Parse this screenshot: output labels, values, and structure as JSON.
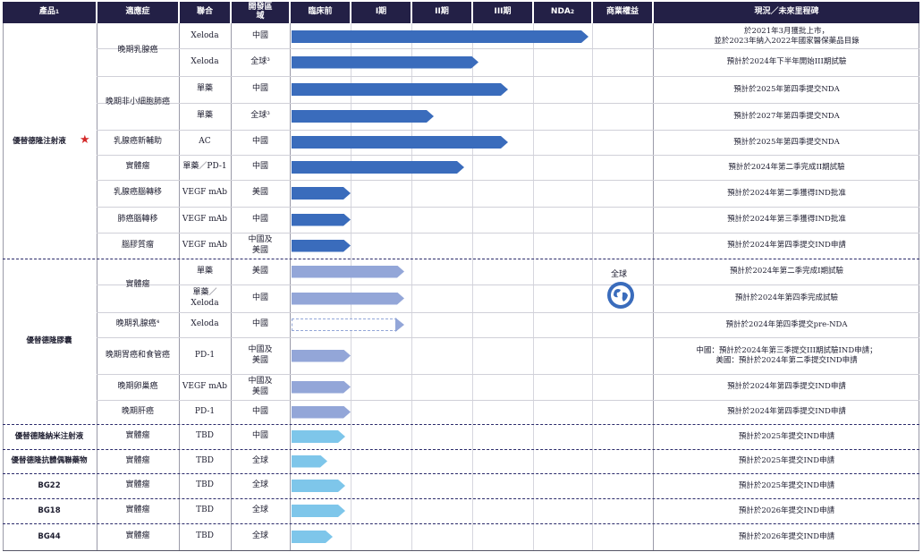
{
  "colors": {
    "header_bg": "#232046",
    "bar_dark": "#3a6cbc",
    "bar_mid": "#93a6d8",
    "bar_light": "#7ec6ea",
    "star": "#d42a2a"
  },
  "header": {
    "product": "產品",
    "product_sup": "1",
    "indication": "適應症",
    "combo": "聯合",
    "region": "開發區域",
    "preclinical": "臨床前",
    "phase1": "I期",
    "phase2": "II期",
    "phase3": "III期",
    "nda": "NDA",
    "nda_sup": "2",
    "commercial": "商業權益",
    "status": "現況／未來里程碑"
  },
  "products": {
    "p1": "優替德隆注射液",
    "p2": "優替德隆膠囊",
    "p3": "優替德隆納米注射液",
    "p4": "優替德隆抗體偶聯藥物",
    "p5": "BG22",
    "p6": "BG18",
    "p7": "BG44"
  },
  "commercial": {
    "label": "全球",
    "icon": "globe-icon"
  },
  "rows": [
    {
      "indication": "晚期乳腺癌",
      "combo": "Xeloda",
      "region": "中國",
      "stage": 1.0,
      "status": "於2021年3月獲批上市，\n並於2023年納入2022年國家醫保藥品目錄"
    },
    {
      "indication": "",
      "combo": "Xeloda",
      "region": "全球³",
      "stage": 0.63,
      "status": "預計於2024年下半年開始III期試驗"
    },
    {
      "indication": "晚期非小細胞肺癌",
      "combo": "單藥",
      "region": "中國",
      "stage": 0.73,
      "status": "預計於2025年第四季提交NDA"
    },
    {
      "indication": "",
      "combo": "單藥",
      "region": "全球³",
      "stage": 0.48,
      "status": "預計於2027年第四季提交NDA"
    },
    {
      "indication": "乳腺癌新輔助",
      "combo": "AC",
      "region": "中國",
      "stage": 0.73,
      "status": "預計於2025年第四季提交NDA"
    },
    {
      "indication": "實體瘤",
      "combo": "單藥／PD-1",
      "region": "中國",
      "stage": 0.58,
      "status": "預計於2024年第二季完成II期試驗"
    },
    {
      "indication": "乳腺癌腦轉移",
      "combo": "VEGF mAb",
      "region": "美國",
      "stage": 0.2,
      "status": "預計於2024年第二季獲得IND批准"
    },
    {
      "indication": "肺癌腦轉移",
      "combo": "VEGF mAb",
      "region": "中國",
      "stage": 0.2,
      "status": "預計於2024年第三季獲得IND批准"
    },
    {
      "indication": "腦膠質瘤",
      "combo": "VEGF mAb",
      "region": "中國及\n美國",
      "stage": 0.2,
      "status": "預計於2024年第四季提交IND申請"
    },
    {
      "indication": "實體瘤",
      "combo": "單藥",
      "region": "美國",
      "stage": 0.38,
      "status": "預計於2024年第二季完成I期試驗"
    },
    {
      "indication": "",
      "combo": "單藥／\nXeloda",
      "region": "中國",
      "stage": 0.38,
      "status": "預計於2024年第四季完成試驗"
    },
    {
      "indication": "晚期乳腺癌⁴",
      "combo": "Xeloda",
      "region": "中國",
      "stage": 0.38,
      "status": "預計於2024年第四季提交pre-NDA"
    },
    {
      "indication": "晚期胃癌和食管癌",
      "combo": "PD-1",
      "region": "中國及\n美國",
      "stage": 0.2,
      "status": "中國：預計於2024年第三季提交III期試驗IND申請；\n美國：預計於2024年第二季提交IND申請"
    },
    {
      "indication": "晚期卵巢癌",
      "combo": "VEGF mAb",
      "region": "中國及\n美國",
      "stage": 0.2,
      "status": "預計於2024年第四季提交IND申請"
    },
    {
      "indication": "晚期肝癌",
      "combo": "PD-1",
      "region": "中國",
      "stage": 0.2,
      "status": "預計於2024年第四季提交IND申請"
    },
    {
      "indication": "實體瘤",
      "combo": "TBD",
      "region": "中國",
      "stage": 0.18,
      "status": "預計於2025年提交IND申請"
    },
    {
      "indication": "實體瘤",
      "combo": "TBD",
      "region": "全球",
      "stage": 0.12,
      "status": "預計於2025年提交IND申請"
    },
    {
      "indication": "實體瘤",
      "combo": "TBD",
      "region": "全球",
      "stage": 0.18,
      "status": "預計於2025年提交IND申請"
    },
    {
      "indication": "實體瘤",
      "combo": "TBD",
      "region": "全球",
      "stage": 0.18,
      "status": "預計於2026年提交IND申請"
    },
    {
      "indication": "實體瘤",
      "combo": "TBD",
      "region": "全球",
      "stage": 0.14,
      "status": "預計於2026年提交IND申請"
    }
  ]
}
